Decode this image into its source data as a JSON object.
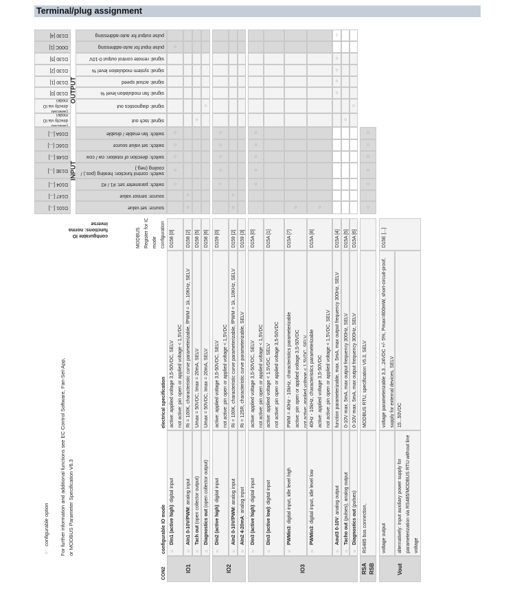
{
  "title": "Terminal/plug assignment",
  "circle_symbol": "○",
  "colors": {
    "title_bar": "#c5ced8",
    "gray_cell": "#d9d9d9",
    "light_cell": "#f3f3f3",
    "border": "#c9c9c9",
    "option_circle": "#888888"
  },
  "upper": {
    "section_output": "OUTPUT",
    "section_input": "INPUT",
    "rows": [
      {
        "register": "D130 [4]",
        "label": "pulse output for auto-addressing",
        "tone": "gray",
        "marks": [
          11
        ]
      },
      {
        "register": "D00C [1]",
        "label": "pulse input for auto-addressing",
        "tone": "gray",
        "marks": [
          0
        ]
      },
      {
        "register": "D130 [5]",
        "label": "signal: remote control output 0-10V",
        "tone": "light",
        "marks": [
          11
        ]
      },
      {
        "register": "D130 [2]",
        "label": "signal: system modulation level %",
        "tone": "light",
        "marks": [
          11
        ]
      },
      {
        "register": "D130 [1]",
        "label": "signal: actual speed",
        "tone": "light",
        "marks": [
          11
        ]
      },
      {
        "register": "D130 [0]",
        "label": "signal: fan modulation level %",
        "tone": "light",
        "marks": [
          11
        ]
      },
      {
        "register": "(selected directly via IO mode)",
        "label": "signal: diagnostics out",
        "tone": "light",
        "marks": [
          3,
          13
        ]
      },
      {
        "register": "(selected directly via IO mode)",
        "label": "signal: tach out",
        "tone": "light",
        "marks": [
          2,
          12
        ]
      },
      {
        "register": "D16A [...]",
        "label": "switch: fan enable / disable",
        "tone": "gray",
        "marks": [
          0,
          4,
          7,
          14
        ]
      },
      {
        "register": "D16C [...]",
        "label": "switch: set value source",
        "tone": "gray",
        "marks": [
          0,
          4,
          7,
          14
        ]
      },
      {
        "register": "D148 [...]",
        "label": "switch: direction of rotation: cw / ccw",
        "tone": "gray",
        "marks": [
          0,
          4,
          7,
          14
        ]
      },
      {
        "register": "D13E [...]",
        "label": "switch: control function: heating (pos.) / cooling (neg.)",
        "tone": "gray",
        "marks": [
          0,
          4,
          7,
          14
        ]
      },
      {
        "register": "D104 [...]",
        "label": "switch: parameter set: #1 / #2",
        "tone": "gray",
        "marks": [
          0,
          4,
          7,
          14
        ]
      },
      {
        "register": "D147 [...]",
        "label": "source: sensor value",
        "tone": "gray",
        "marks": [
          1,
          5
        ]
      },
      {
        "register": "D101 [...]",
        "label": "source: set value",
        "tone": "gray",
        "marks": [
          1,
          5,
          9,
          10,
          14
        ]
      }
    ]
  },
  "io_functions_header": [
    "configurable IO",
    "functions: normal /",
    "inverse"
  ],
  "header": {
    "con2": "CON2",
    "mode": "configurable IO mode",
    "spec": "electrical specification",
    "register": [
      "MODBUS",
      "Register for IO",
      "mode",
      "configuration"
    ]
  },
  "groups": [
    {
      "label": "IO1"
    },
    {
      "label": "IO2"
    },
    {
      "label": "IO3"
    },
    {
      "label": "RSA\nRSB"
    },
    {
      "label": "Vout"
    }
  ],
  "rows": [
    {
      "bullet": true,
      "bold": "Din1 (active high)",
      "rest": ": digital input",
      "spec": [
        "active: applied voltage 3,5-50VDC, SELV",
        "not active: pin open or applied voltage < 1,5VDC"
      ],
      "register": "D158 [0]"
    },
    {
      "bullet": true,
      "bold": "AIn1 0-10V/PWM",
      "rest": ": analog input",
      "spec": [
        "Ri = 100K, characteristic curve parameterizable, fPWM = 1k..10KHz, SELV"
      ],
      "register": "D158 [2]"
    },
    {
      "bullet": true,
      "bold": "Tach out",
      "rest": " (open collector output)",
      "spec": [
        "Umax = 50VDC, Imax = 20mA, SELV"
      ],
      "register": "D158 [5]"
    },
    {
      "bullet": true,
      "bold": "Diagnostics out",
      "rest": " (open collector output)",
      "spec": [
        "Umax = 50VDC, Imax = 20mA, SELV"
      ],
      "register": "D158 [6]"
    },
    {
      "bullet": true,
      "bold": "Din2 (active high)",
      "rest": ": digital input",
      "spec": [
        "active: applied voltage 3,5-50VDC, SELV",
        "not active: pin open or applied voltage < 1,5VDC"
      ],
      "register": "D159 [0]"
    },
    {
      "bullet": true,
      "bold": "AIn2 0-10V/PWM",
      "rest": ": analog input",
      "spec": [
        "Ri = 100K, characteristic curve parameterizable, fPWM = 1k..10KHz, SELV"
      ],
      "register": "D159 [2]"
    },
    {
      "bullet": true,
      "bold": "AIn2 4-20mA",
      "rest": ": analog input",
      "spec": [
        "Ri = 125R, characteristic curve parameterizable, SELV"
      ],
      "register": "D159 [3]"
    },
    {
      "bullet": true,
      "bold": "Din3 (active high)",
      "rest": ": digital input",
      "spec": [
        "active: applied voltage 3,5-50VDC, SELV",
        "not active: pin open or applied voltage < 1,5VDC"
      ],
      "register": "D15A [0]"
    },
    {
      "bullet": true,
      "bold": "Din3 (active low)",
      "rest": ": digital input",
      "spec": [
        "active: applied voltage < 1,5VDC, SELV",
        "not active: pin open or applied voltage 3,5-50VDC"
      ],
      "register": "D15A [1]"
    },
    {
      "bullet": true,
      "bold": "PWMin3",
      "rest": ": digital input, idle level high",
      "spec": [
        "PWM = 40Hz - 10kHz, characteristics parameterizable",
        "active: pin open or applied voltage 3,5-50VDC",
        "not active: applied voltage < 1,5VDC, SELV"
      ],
      "register": "D15A [7]"
    },
    {
      "bullet": true,
      "bold": "PWMin3",
      "rest": ": digital input, idle level low",
      "spec": [
        "40Hz - 10kHz, characteristics parameterizable",
        "active: applied voltage 3,5-50VDC",
        "not active: pin open or applied voltage < 1,5VDC, SELV"
      ],
      "register": "D15A [8]"
    },
    {
      "bullet": true,
      "bold": "Aout3 0-10V",
      "rest": ": analog output",
      "spec": [
        "function parameterizable, max. 5mA, max output frequency 300Hz, SELV"
      ],
      "register": "D15A [4]"
    },
    {
      "bullet": true,
      "bold": "Tacho out",
      "rest": " (pulses), analog output",
      "spec": [
        "0-10V max. 5mA, max output frequency 300Hz, SELV"
      ],
      "register": "D15A [5]"
    },
    {
      "bullet": true,
      "bold": "Diagnostics out",
      "rest": " (pulses)",
      "spec": [
        "0-10V max. 5mA, max output frequency 300Hz, SELV"
      ],
      "register": "D15A [6]"
    },
    {
      "bullet": false,
      "bold": "",
      "rest": "RS485 bus connection,",
      "spec": [
        "MODBUS RTU, specification V6.3, SELV"
      ],
      "register": ""
    },
    {
      "bullet": false,
      "bold": "",
      "rest": "voltage output",
      "spec": [
        "voltage parameterizable 3,3...24VDC +/- 5%, Pmax=800mW, short-circuit-proof,",
        "supply for external devices, SELV"
      ],
      "register": "D15E [...]"
    },
    {
      "bullet": false,
      "bold": "",
      "rest": "alternatively: Input auxiliary power supply for\nparameterization via RS485/MODBUS RTU without line\nvoltage",
      "spec": [
        "15...50VDC"
      ],
      "register": ""
    }
  ],
  "notes": {
    "legend": "configurable option",
    "info": [
      "For further information and additional functions see EC Control Software, Fan-Set-App,",
      "or MODBUS Parameter Specification V6.3"
    ]
  }
}
